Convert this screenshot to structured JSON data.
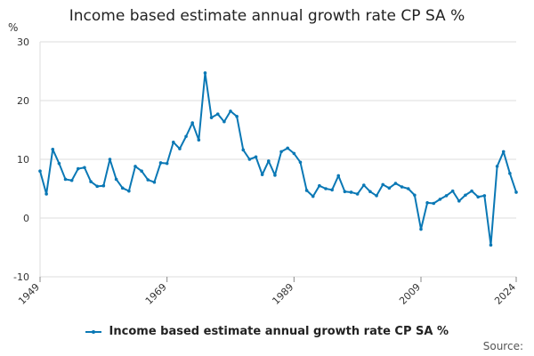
{
  "title": "Income based estimate annual growth rate CP SA %",
  "source": "Source:",
  "colors": {
    "series": "#0a78b5",
    "grid": "#dddddd",
    "axis": "#888888",
    "text": "#333333"
  },
  "chart_data": {
    "type": "line",
    "title": "Income based estimate annual growth rate CP SA %",
    "xlabel": "",
    "ylabel": "%",
    "ylim": [
      -10,
      30
    ],
    "yticks": [
      -10,
      0,
      10,
      20,
      30
    ],
    "xlim": [
      1949,
      2024
    ],
    "xticks": [
      1949,
      1969,
      1989,
      2009,
      2024
    ],
    "grid": true,
    "legend_position": "bottom",
    "series": [
      {
        "name": "Income based estimate annual growth rate CP SA %",
        "x": [
          1949,
          1950,
          1951,
          1952,
          1953,
          1954,
          1955,
          1956,
          1957,
          1958,
          1959,
          1960,
          1961,
          1962,
          1963,
          1964,
          1965,
          1966,
          1967,
          1968,
          1969,
          1970,
          1971,
          1972,
          1973,
          1974,
          1975,
          1976,
          1977,
          1978,
          1979,
          1980,
          1981,
          1982,
          1983,
          1984,
          1985,
          1986,
          1987,
          1988,
          1989,
          1990,
          1991,
          1992,
          1993,
          1994,
          1995,
          1996,
          1997,
          1998,
          1999,
          2000,
          2001,
          2002,
          2003,
          2004,
          2005,
          2006,
          2007,
          2008,
          2009,
          2010,
          2011,
          2012,
          2013,
          2014,
          2015,
          2016,
          2017,
          2018,
          2019,
          2020,
          2021,
          2022,
          2023,
          2024
        ],
        "values": [
          8.0,
          4.1,
          11.7,
          9.3,
          6.6,
          6.4,
          8.4,
          8.6,
          6.2,
          5.4,
          5.5,
          10.0,
          6.6,
          5.1,
          4.6,
          8.8,
          8.0,
          6.5,
          6.1,
          9.4,
          9.3,
          12.9,
          11.8,
          13.9,
          16.2,
          13.3,
          24.7,
          17.1,
          17.7,
          16.4,
          18.2,
          17.3,
          11.6,
          10.0,
          10.4,
          7.4,
          9.7,
          7.3,
          11.3,
          11.9,
          11.0,
          9.5,
          4.7,
          3.7,
          5.5,
          5.0,
          4.8,
          7.2,
          4.5,
          4.4,
          4.1,
          5.6,
          4.5,
          3.8,
          5.7,
          5.1,
          5.9,
          5.3,
          5.0,
          3.9,
          -1.9,
          2.6,
          2.5,
          3.2,
          3.8,
          4.6,
          2.9,
          3.9,
          4.6,
          3.6,
          3.8,
          -4.6,
          8.8,
          11.3,
          7.6,
          4.4
        ]
      }
    ]
  }
}
